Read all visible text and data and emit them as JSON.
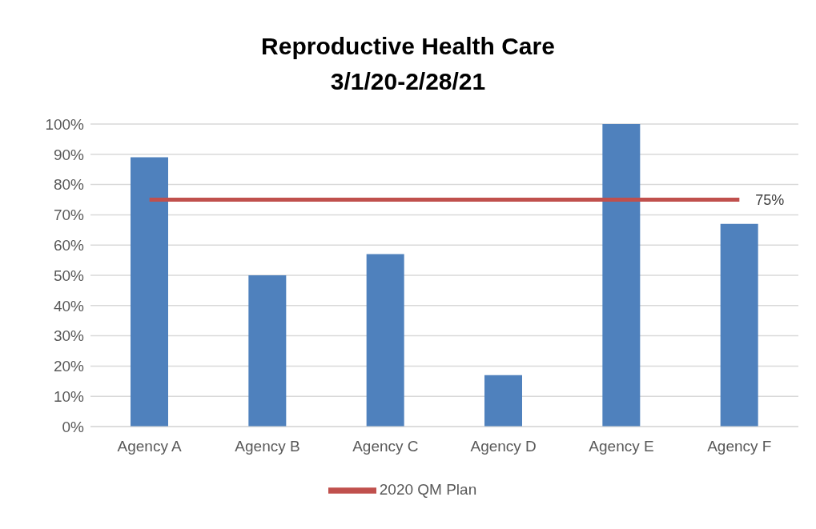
{
  "chart_data": {
    "type": "bar",
    "title": "Reproductive Health Care\n3/1/20-2/28/21",
    "categories": [
      "Agency A",
      "Agency B",
      "Agency C",
      "Agency D",
      "Agency E",
      "Agency F"
    ],
    "series": [
      {
        "color": "#4f81bd",
        "values": [
          89,
          50,
          57,
          17,
          100,
          67
        ]
      },
      {
        "type": "line",
        "name": "2020 QM Plan",
        "color": "#c0504d",
        "values": [
          75,
          75,
          75,
          75,
          75,
          75
        ],
        "value_labels": [
          null,
          null,
          null,
          null,
          null,
          "75%"
        ]
      }
    ],
    "ylim": [
      0,
      100
    ],
    "yticks": [
      {
        "value": 0,
        "label": "0%"
      },
      {
        "value": 10,
        "label": "10%"
      },
      {
        "value": 20,
        "label": "20%"
      },
      {
        "value": 30,
        "label": "30%"
      },
      {
        "value": 40,
        "label": "40%"
      },
      {
        "value": 50,
        "label": "50%"
      },
      {
        "value": 60,
        "label": "60%"
      },
      {
        "value": 70,
        "label": "70%"
      },
      {
        "value": 80,
        "label": "80%"
      },
      {
        "value": 90,
        "label": "90%"
      },
      {
        "value": 100,
        "label": "100%"
      }
    ],
    "grid": "y",
    "legend": "bottom",
    "marker": "none",
    "line_style": "solid"
  }
}
